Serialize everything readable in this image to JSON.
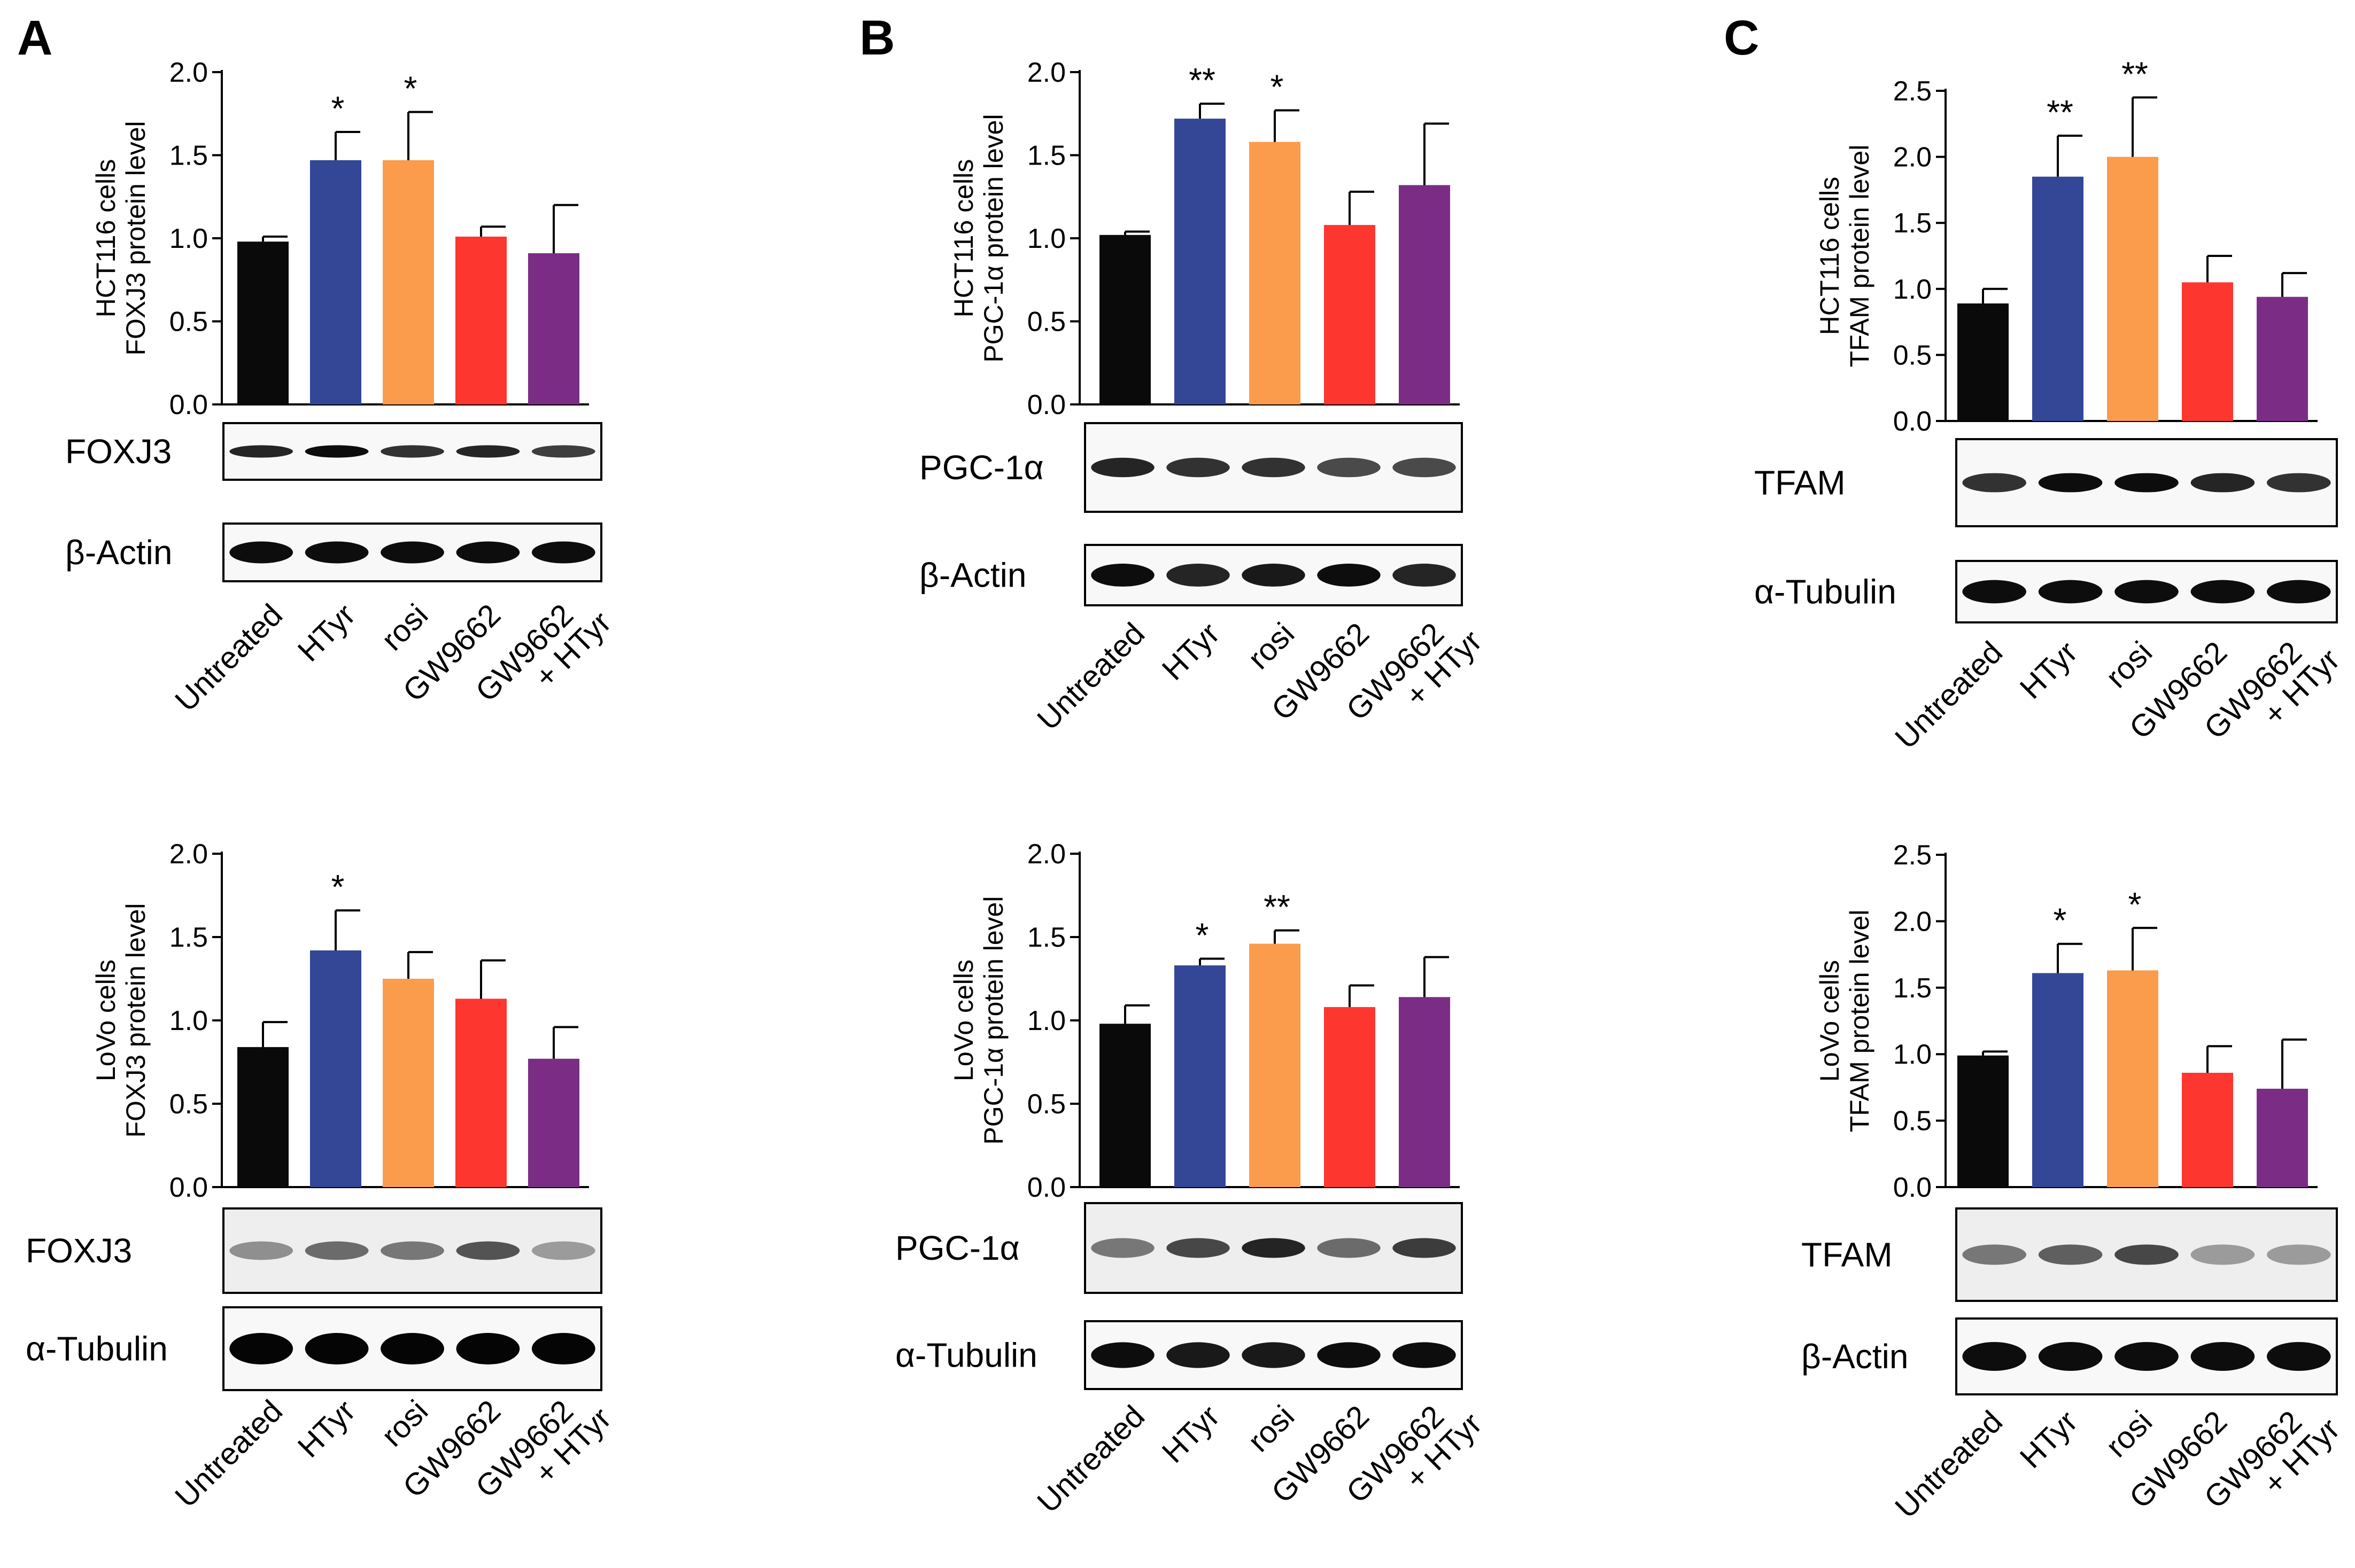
{
  "colors": {
    "Untreated": "#0a0a0a",
    "HTyr": "#344796",
    "rosi": "#fb9b4c",
    "GW9662": "#fd3630",
    "GW9662 + HTyr": "#7b2d86"
  },
  "categories": [
    "Untreated",
    "HTyr",
    "rosi",
    "GW9662",
    "GW9662 + HTyr"
  ],
  "category_lines": [
    [
      "Untreated"
    ],
    [
      "HTyr"
    ],
    [
      "rosi"
    ],
    [
      "GW9662"
    ],
    [
      "GW9662",
      "+ HTyr"
    ]
  ],
  "chart_data": [
    {
      "panel": "A",
      "type": "bar",
      "cells": "HCT116 cells",
      "protein": "FOXJ3 protein level",
      "ylabel": "HCT116 cells FOXJ3 protein level",
      "ylim": [
        0,
        2.0
      ],
      "yticks": [
        "0.0",
        "0.5",
        "1.0",
        "1.5",
        "2.0"
      ],
      "categories": [
        "Untreated",
        "HTyr",
        "rosi",
        "GW9662",
        "GW9662 + HTyr"
      ],
      "values": [
        0.98,
        1.47,
        1.47,
        1.01,
        0.91
      ],
      "errors": [
        0.03,
        0.17,
        0.29,
        0.06,
        0.29
      ],
      "significance": [
        "",
        "*",
        "*",
        "",
        ""
      ],
      "blots": [
        "FOXJ3",
        "β-Actin"
      ]
    },
    {
      "panel": "B",
      "type": "bar",
      "cells": "HCT116 cells",
      "protein": "PGC-1α protein level",
      "ylabel": "HCT116 cells PGC-1α protein level",
      "ylim": [
        0,
        2.0
      ],
      "yticks": [
        "0.0",
        "0.5",
        "1.0",
        "1.5",
        "2.0"
      ],
      "categories": [
        "Untreated",
        "HTyr",
        "rosi",
        "GW9662",
        "GW9662 + HTyr"
      ],
      "values": [
        1.02,
        1.72,
        1.58,
        1.08,
        1.32
      ],
      "errors": [
        0.02,
        0.09,
        0.19,
        0.2,
        0.37
      ],
      "significance": [
        "",
        "**",
        "*",
        "",
        ""
      ],
      "blots": [
        "PGC-1α",
        "β-Actin"
      ]
    },
    {
      "panel": "C",
      "type": "bar",
      "cells": "HCT116 cells",
      "protein": "TFAM protein level",
      "ylabel": "HCT116 cells TFAM protein level",
      "ylim": [
        0,
        2.5
      ],
      "yticks": [
        "0.0",
        "0.5",
        "1.0",
        "1.5",
        "2.0",
        "2.5"
      ],
      "categories": [
        "Untreated",
        "HTyr",
        "rosi",
        "GW9662",
        "GW9662 + HTyr"
      ],
      "values": [
        0.89,
        1.85,
        2.0,
        1.05,
        0.94
      ],
      "errors": [
        0.11,
        0.31,
        0.45,
        0.2,
        0.18
      ],
      "significance": [
        "",
        "**",
        "**",
        "",
        ""
      ],
      "blots": [
        "TFAM",
        "α-Tubulin"
      ]
    },
    {
      "panel": "A",
      "type": "bar",
      "cells": "LoVo cells",
      "protein": "FOXJ3 protein level",
      "ylabel": "LoVo cells FOXJ3 protein level",
      "ylim": [
        0,
        2.0
      ],
      "yticks": [
        "0.0",
        "0.5",
        "1.0",
        "1.5",
        "2.0"
      ],
      "categories": [
        "Untreated",
        "HTyr",
        "rosi",
        "GW9662",
        "GW9662 + HTyr"
      ],
      "values": [
        0.84,
        1.42,
        1.25,
        1.13,
        0.77
      ],
      "errors": [
        0.15,
        0.24,
        0.16,
        0.23,
        0.19
      ],
      "significance": [
        "",
        "*",
        "",
        "",
        ""
      ],
      "blots": [
        "FOXJ3",
        "α-Tubulin"
      ]
    },
    {
      "panel": "B",
      "type": "bar",
      "cells": "LoVo cells",
      "protein": "PGC-1α protein level",
      "ylabel": "LoVo cells PGC-1α protein level",
      "ylim": [
        0,
        2.0
      ],
      "yticks": [
        "0.0",
        "0.5",
        "1.0",
        "1.5",
        "2.0"
      ],
      "categories": [
        "Untreated",
        "HTyr",
        "rosi",
        "GW9662",
        "GW9662 + HTyr"
      ],
      "values": [
        0.98,
        1.33,
        1.46,
        1.08,
        1.14
      ],
      "errors": [
        0.11,
        0.04,
        0.08,
        0.13,
        0.24
      ],
      "significance": [
        "",
        "*",
        "**",
        "",
        ""
      ],
      "blots": [
        "PGC-1α",
        "α-Tubulin"
      ]
    },
    {
      "panel": "C",
      "type": "bar",
      "cells": "LoVo cells",
      "protein": "TFAM protein level",
      "ylabel": "LoVo cells TFAM protein level",
      "ylim": [
        0,
        2.5
      ],
      "yticks": [
        "0.0",
        "0.5",
        "1.0",
        "1.5",
        "2.0",
        "2.5"
      ],
      "categories": [
        "Untreated",
        "HTyr",
        "rosi",
        "GW9662",
        "GW9662 + HTyr"
      ],
      "values": [
        0.99,
        1.61,
        1.63,
        0.86,
        0.74
      ],
      "errors": [
        0.03,
        0.22,
        0.32,
        0.2,
        0.37
      ],
      "significance": [
        "",
        "*",
        "*",
        "",
        ""
      ],
      "blots": [
        "TFAM",
        "β-Actin"
      ]
    }
  ]
}
